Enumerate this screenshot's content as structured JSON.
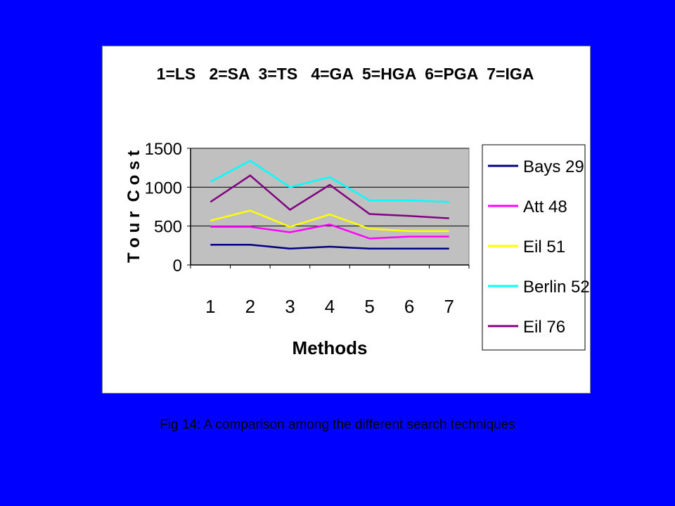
{
  "background_color": "#0000FF",
  "caption": "Fig 14: A comparison among the different search techniques",
  "chart_data": {
    "type": "line",
    "title": "1=LS   2=SA  3=TS   4=GA  5=HGA  6=PGA  7=IGA",
    "xlabel": "Methods",
    "ylabel": "T o u r  C o s t",
    "categories": [
      "1",
      "2",
      "3",
      "4",
      "5",
      "6",
      "7"
    ],
    "ylim": [
      0,
      1500
    ],
    "yticks": [
      "0",
      "500",
      "1000",
      "1500"
    ],
    "grid": true,
    "plot_background": "#C0C0C0",
    "legend_position": "right",
    "series": [
      {
        "name": "Bays 29",
        "color": "#000080",
        "values": [
          260,
          260,
          210,
          235,
          210,
          210,
          210
        ]
      },
      {
        "name": "Att 48",
        "color": "#FF00FF",
        "values": [
          490,
          490,
          420,
          520,
          340,
          365,
          365
        ]
      },
      {
        "name": "Eil 51",
        "color": "#FFFF00",
        "values": [
          570,
          700,
          490,
          650,
          465,
          435,
          435
        ]
      },
      {
        "name": "Berlin 52",
        "color": "#00FFFF",
        "values": [
          1070,
          1340,
          1000,
          1130,
          830,
          830,
          810
        ]
      },
      {
        "name": "Eil 76",
        "color": "#800080",
        "values": [
          810,
          1150,
          710,
          1030,
          655,
          630,
          600
        ]
      }
    ]
  }
}
